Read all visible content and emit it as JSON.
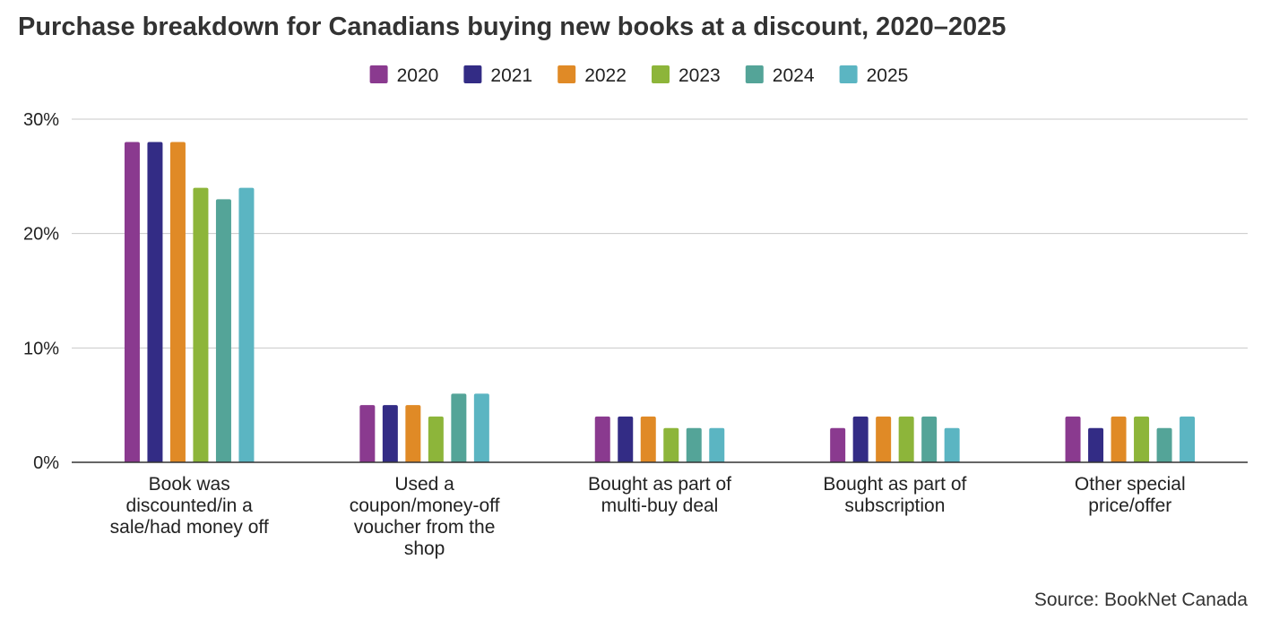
{
  "chart_data": {
    "type": "bar",
    "title": "Purchase breakdown for Canadians buying new books at a discount, 2020–2025",
    "xlabel": "",
    "ylabel": "",
    "ylim": [
      0,
      30
    ],
    "y_ticks": [
      "0%",
      "10%",
      "20%",
      "30%"
    ],
    "grid": true,
    "legend_position": "top",
    "categories": [
      [
        "Book was",
        "discounted/in a",
        "sale/had money off"
      ],
      [
        "Used a",
        "coupon/money-off",
        "voucher from the",
        "shop"
      ],
      [
        "Bought as part of",
        "multi-buy deal"
      ],
      [
        "Bought as part of",
        "subscription"
      ],
      [
        "Other special",
        "price/offer"
      ]
    ],
    "series": [
      {
        "name": "2020",
        "color": "#8a3a8f",
        "values": [
          28,
          5,
          4,
          3,
          4
        ]
      },
      {
        "name": "2021",
        "color": "#332c85",
        "values": [
          28,
          5,
          4,
          4,
          3
        ]
      },
      {
        "name": "2022",
        "color": "#e08a26",
        "values": [
          28,
          5,
          4,
          4,
          4
        ]
      },
      {
        "name": "2023",
        "color": "#8db53a",
        "values": [
          24,
          4,
          3,
          4,
          4
        ]
      },
      {
        "name": "2024",
        "color": "#54a498",
        "values": [
          23,
          6,
          3,
          4,
          3
        ]
      },
      {
        "name": "2025",
        "color": "#5bb5c2",
        "values": [
          24,
          6,
          3,
          3,
          4
        ]
      }
    ],
    "source": "Source: BookNet Canada"
  }
}
